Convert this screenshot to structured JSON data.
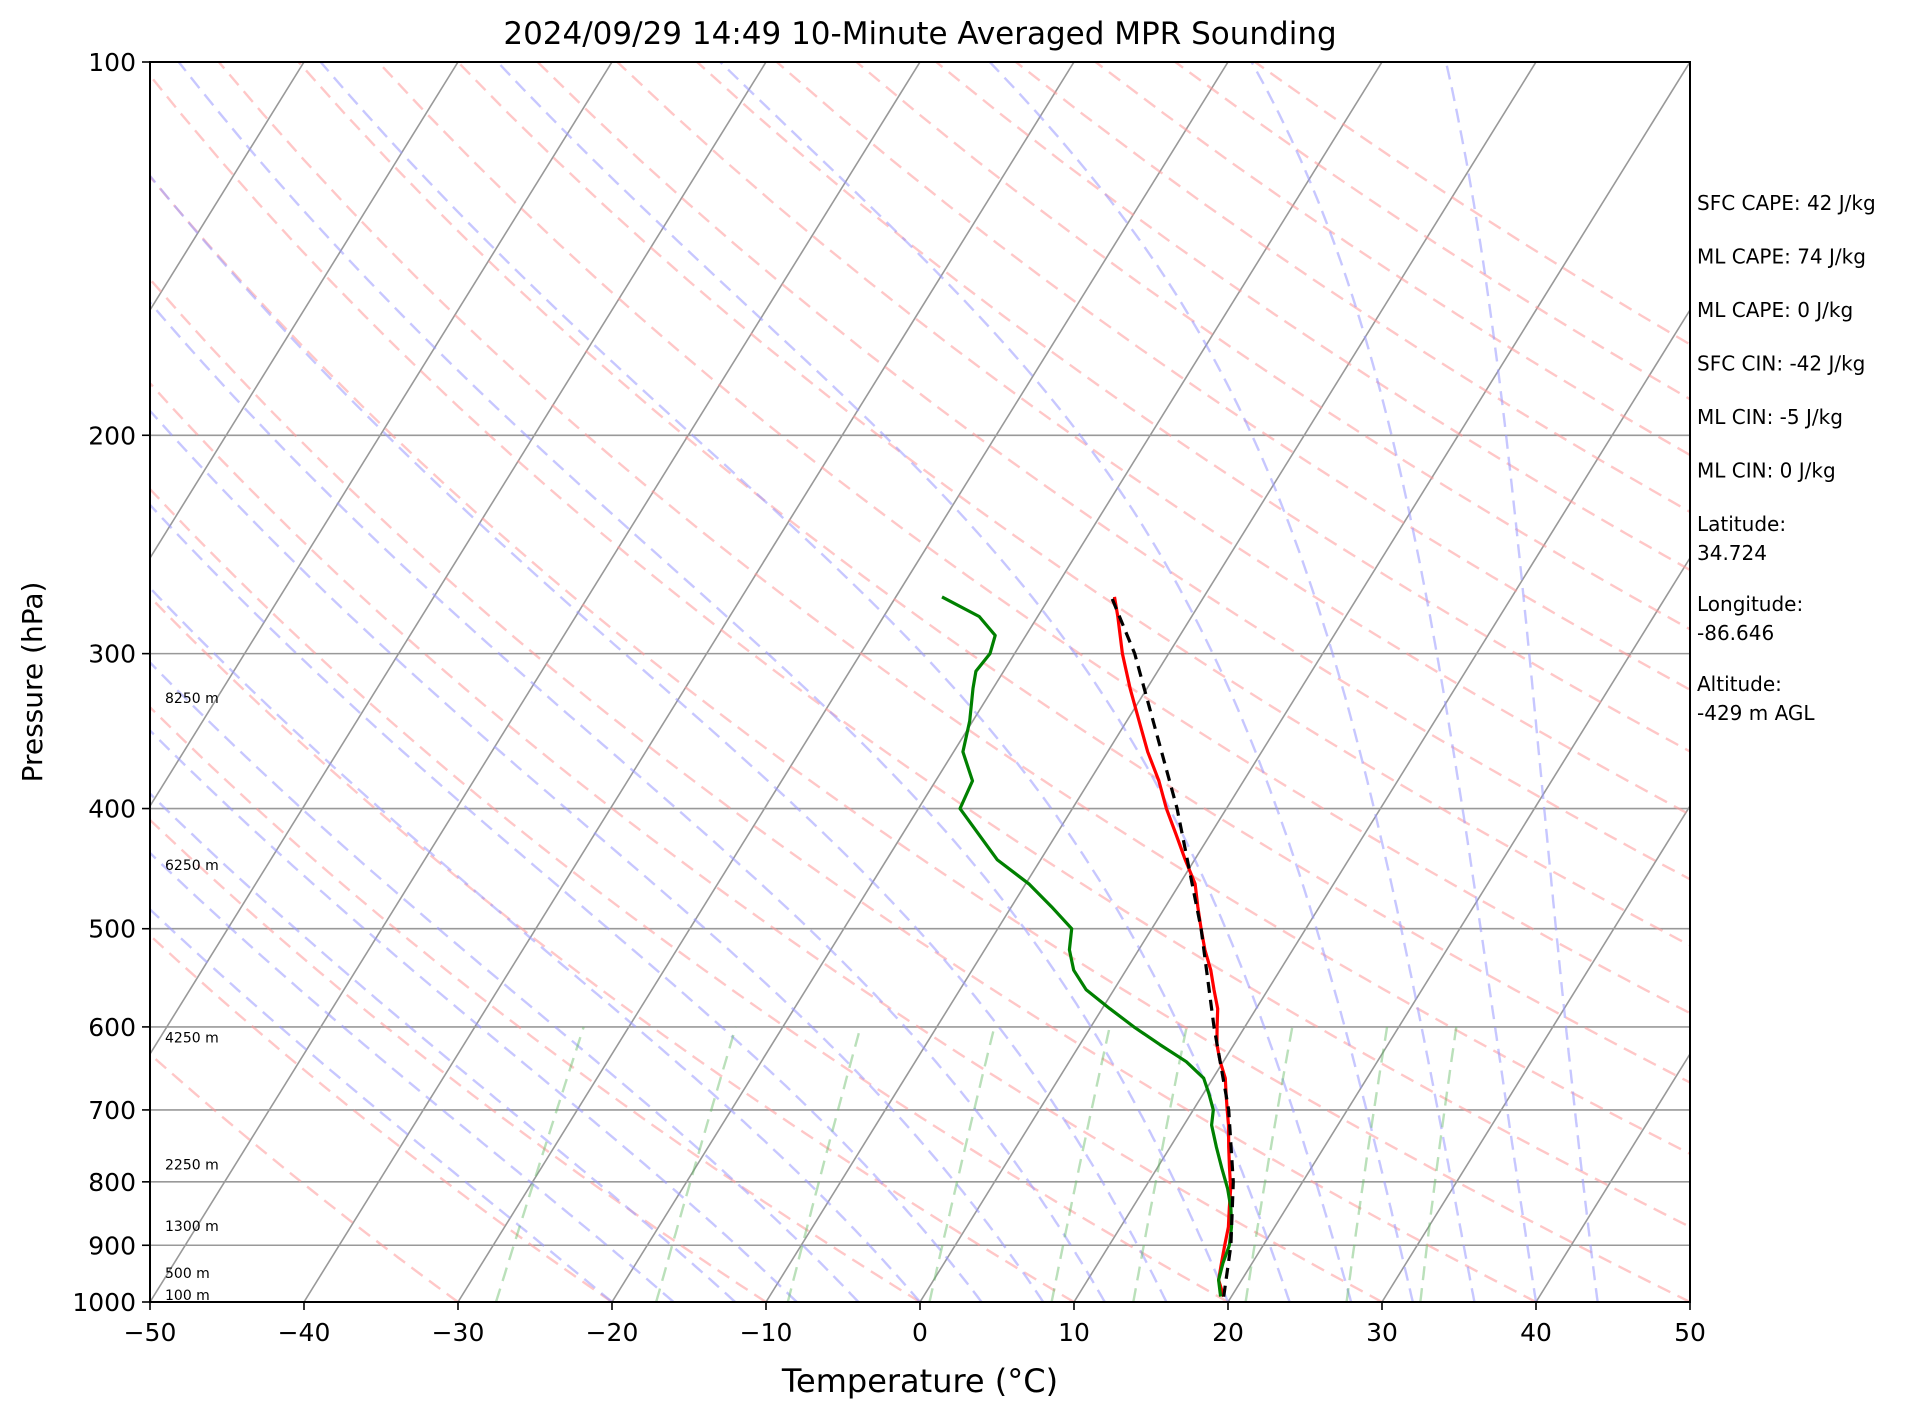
{
  "chart_data": {
    "type": "line",
    "title": "2024/09/29 14:49 10-Minute Averaged MPR Sounding",
    "xlabel": "Temperature (°C)",
    "ylabel": "Pressure (hPa)",
    "xlim": [
      -50,
      50
    ],
    "ylim": [
      1000,
      100
    ],
    "y_scale": "log",
    "x_ticks": [
      "−50",
      "−40",
      "−30",
      "−20",
      "−10",
      "0",
      "10",
      "20",
      "30",
      "40",
      "50"
    ],
    "x_tick_values": [
      -50,
      -40,
      -30,
      -20,
      -10,
      0,
      10,
      20,
      30,
      40,
      50
    ],
    "y_ticks": [
      "100",
      "200",
      "300",
      "400",
      "500",
      "600",
      "700",
      "800",
      "900",
      "1000"
    ],
    "y_tick_values": [
      100,
      200,
      300,
      400,
      500,
      600,
      700,
      800,
      900,
      1000
    ],
    "grid": true,
    "skew": "skew-T log-p",
    "colors": {
      "temperature": "#ff0000",
      "dewpoint": "#008000",
      "parcel": "#000000",
      "dry_adiabats": "#ff9999",
      "moist_adiabats": "#9999ff",
      "mixing_ratio": "#66bb66",
      "isotherms": "#999999"
    },
    "series": [
      {
        "key": "temperature",
        "pressure": [
          990,
          960,
          930,
          900,
          870,
          840,
          810,
          780,
          750,
          720,
          700,
          680,
          660,
          640,
          620,
          600,
          580,
          560,
          540,
          520,
          500,
          480,
          460,
          440,
          420,
          400,
          380,
          360,
          340,
          320,
          300,
          280,
          270
        ],
        "temp": [
          19.5,
          18.5,
          18.0,
          17.5,
          17.0,
          16.3,
          15.6,
          14.7,
          13.8,
          12.9,
          12.2,
          11.5,
          10.8,
          9.8,
          8.9,
          8.2,
          7.5,
          6.5,
          5.5,
          4.3,
          3.2,
          2.1,
          1.0,
          -0.6,
          -2.2,
          -3.9,
          -5.5,
          -7.4,
          -9.2,
          -11.1,
          -13.0,
          -14.8,
          -15.8
        ]
      },
      {
        "key": "dewpoint",
        "pressure": [
          990,
          960,
          930,
          900,
          870,
          840,
          810,
          780,
          750,
          720,
          700,
          680,
          660,
          640,
          620,
          600,
          580,
          560,
          540,
          520,
          500,
          480,
          460,
          440,
          420,
          400,
          380,
          360,
          340,
          320,
          310,
          300,
          290,
          280,
          270
        ],
        "temp": [
          19.3,
          18.5,
          18.1,
          17.8,
          17.2,
          16.4,
          15.4,
          14.2,
          13.0,
          11.8,
          11.3,
          10.4,
          9.4,
          7.6,
          5.2,
          2.8,
          0.5,
          -1.8,
          -3.4,
          -4.5,
          -5.2,
          -7.4,
          -9.8,
          -12.8,
          -15.0,
          -17.3,
          -17.6,
          -19.4,
          -20.2,
          -21.3,
          -21.8,
          -21.6,
          -22.0,
          -23.8,
          -27.0
        ]
      },
      {
        "key": "parcel",
        "pressure": [
          990,
          900,
          800,
          700,
          600,
          500,
          400,
          300,
          270
        ],
        "temp": [
          19.5,
          17.9,
          15.5,
          12.3,
          8.0,
          3.2,
          -3.2,
          -12.2,
          -16.0
        ]
      }
    ],
    "height_labels": [
      "100 m",
      "500 m",
      "1300 m",
      "2250 m",
      "4250 m",
      "6250 m",
      "8250 m"
    ],
    "height_label_pressures": [
      1000,
      960,
      880,
      785,
      620,
      450,
      330
    ],
    "annotations": [
      "SFC CAPE: 42 J/kg",
      "ML CAPE: 74 J/kg",
      "ML CAPE: 0 J/kg",
      "SFC CIN: -42 J/kg",
      "ML CIN: -5 J/kg",
      "ML CIN: 0 J/kg",
      "Latitude:",
      "34.724",
      "Longitude:",
      "-86.646",
      "Altitude:",
      "-429 m AGL"
    ]
  }
}
